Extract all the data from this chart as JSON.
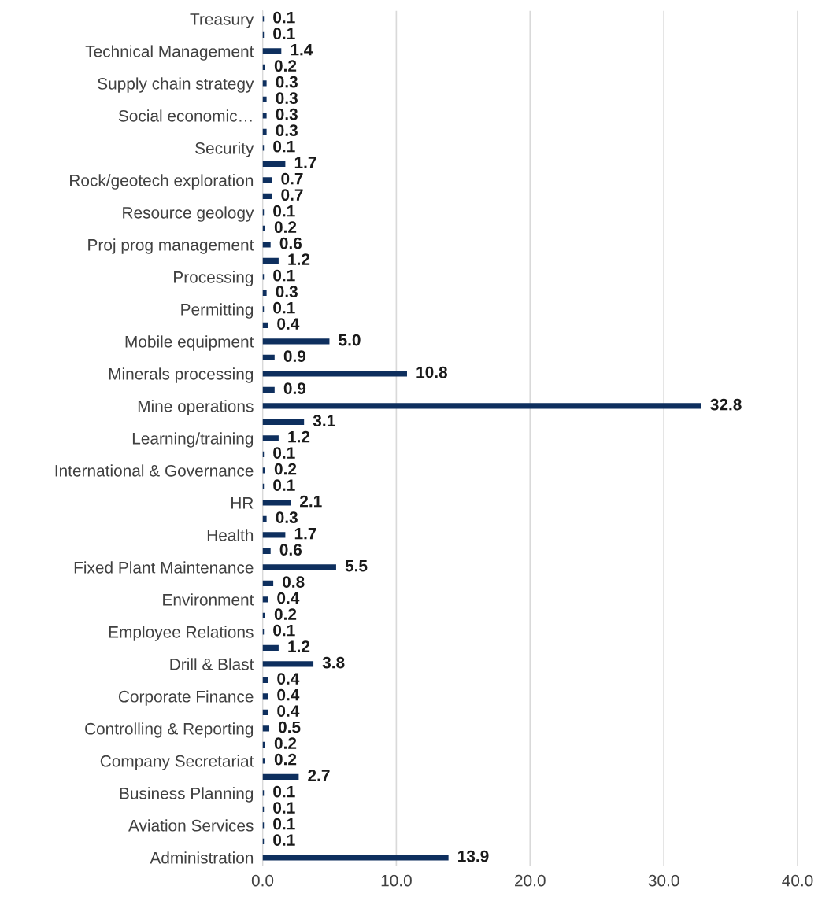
{
  "chart_data": {
    "type": "bar",
    "orientation": "horizontal",
    "color": "#0e2f5e",
    "grid": "x",
    "value_labels": [
      "0.1",
      "0.1",
      "1.4",
      "0.2",
      "0.3",
      "0.3",
      "0.3",
      "0.3",
      "0.1",
      "1.7",
      "0.7",
      "0.7",
      "0.1",
      "0.2",
      "0.6",
      "1.2",
      "0.1",
      "0.3",
      "0.1",
      "0.4",
      "5.0",
      "0.9",
      "10.8",
      "0.9",
      "32.8",
      "3.1",
      "1.2",
      "0.1",
      "0.2",
      "0.1",
      "2.1",
      "0.3",
      "1.7",
      "0.6",
      "5.5",
      "0.8",
      "0.4",
      "0.2",
      "0.1",
      "1.2",
      "3.8",
      "0.4",
      "0.4",
      "0.4",
      "0.5",
      "0.2",
      "0.2",
      "2.7",
      "0.1",
      "0.1",
      "0.1",
      "0.1",
      "13.9"
    ],
    "categories": [
      "Treasury",
      null,
      "Technical Management",
      null,
      "Supply chain strategy",
      null,
      "Social economic…",
      null,
      "Security",
      null,
      "Rock/geotech exploration",
      null,
      "Resource geology",
      null,
      "Proj prog management",
      null,
      "Processing",
      null,
      "Permitting",
      null,
      "Mobile equipment",
      null,
      "Minerals processing",
      null,
      "Mine operations",
      null,
      "Learning/training",
      null,
      "International & Governance",
      null,
      "HR",
      null,
      "Health",
      null,
      "Fixed Plant Maintenance",
      null,
      "Environment",
      null,
      "Employee Relations",
      null,
      "Drill & Blast",
      null,
      "Corporate Finance",
      null,
      "Controlling & Reporting",
      null,
      "Company Secretariat",
      null,
      "Business Planning",
      null,
      "Aviation Services",
      null,
      "Administration"
    ],
    "values": [
      0.1,
      0.1,
      1.4,
      0.2,
      0.3,
      0.3,
      0.3,
      0.3,
      0.1,
      1.7,
      0.7,
      0.7,
      0.1,
      0.2,
      0.6,
      1.2,
      0.1,
      0.3,
      0.1,
      0.4,
      5.0,
      0.9,
      10.8,
      0.9,
      32.8,
      3.1,
      1.2,
      0.1,
      0.2,
      0.1,
      2.1,
      0.3,
      1.7,
      0.6,
      5.5,
      0.8,
      0.4,
      0.2,
      0.1,
      1.2,
      3.8,
      0.4,
      0.4,
      0.4,
      0.5,
      0.2,
      0.2,
      2.7,
      0.1,
      0.1,
      0.1,
      0.1,
      13.9
    ],
    "xlim": [
      0,
      40
    ],
    "xticks": [
      {
        "value": 0,
        "label": "0.0"
      },
      {
        "value": 10,
        "label": "10.0"
      },
      {
        "value": 20,
        "label": "20.0"
      },
      {
        "value": 30,
        "label": "30.0"
      },
      {
        "value": 40,
        "label": "40.0"
      }
    ]
  }
}
